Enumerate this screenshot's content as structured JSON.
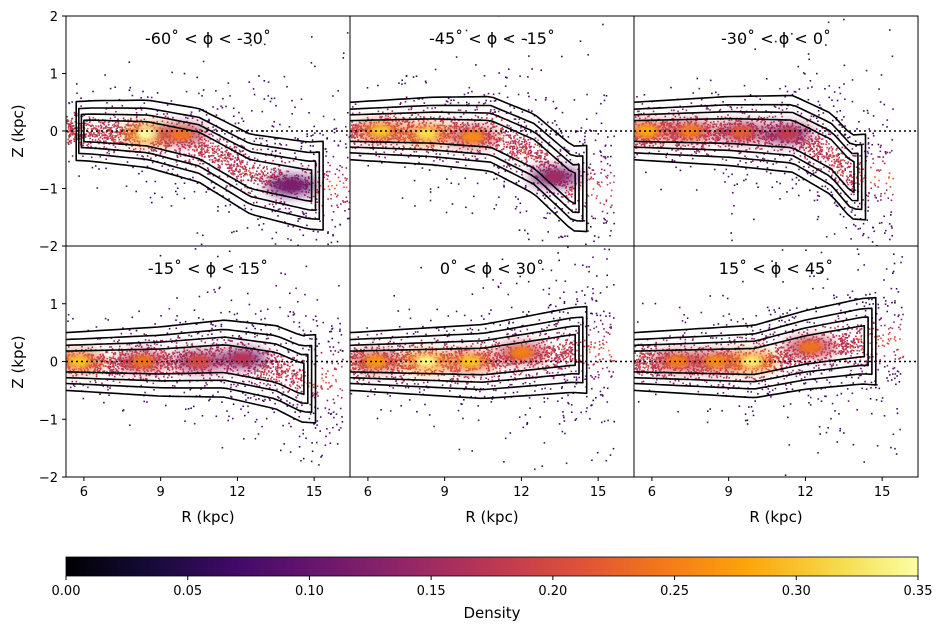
{
  "chart_data": {
    "type": "scatter",
    "description_grid": "2x3 panels sharing axes",
    "xlabel": "R (kpc)",
    "ylabel": "Z (kpc)",
    "xlim": [
      5.3,
      16.4
    ],
    "ylim": [
      -2,
      2
    ],
    "xticks": [
      6,
      9,
      12,
      15
    ],
    "yticks_top": [
      -2,
      -1,
      0,
      1,
      2
    ],
    "yticks_bottom": [
      -2,
      -1,
      0,
      1
    ],
    "reference_line": {
      "y": 0,
      "style": "dotted"
    },
    "contour_levels": 4,
    "colorbar": {
      "label": "Density",
      "range": [
        0.0,
        0.35
      ],
      "ticks": [
        "0.00",
        "0.05",
        "0.10",
        "0.15",
        "0.20",
        "0.25",
        "0.30",
        "0.35"
      ],
      "colormap": "inferno"
    },
    "panels": [
      {
        "title": "-60˚ < ϕ < -30˚",
        "ridge": [
          [
            6.3,
            0.0
          ],
          [
            8.5,
            -0.05
          ],
          [
            10.5,
            -0.25
          ],
          [
            12.5,
            -0.75
          ],
          [
            14.8,
            -0.95
          ]
        ],
        "peaks": [
          {
            "r": 8.5,
            "z": -0.05,
            "d": 0.35
          },
          {
            "r": 9.8,
            "z": -0.05,
            "d": 0.24
          },
          {
            "r": 14.1,
            "z": -0.95,
            "d": 0.12
          }
        ]
      },
      {
        "title": "-45˚ < ϕ < -15˚",
        "ridge": [
          [
            5.3,
            0.0
          ],
          [
            8.5,
            0.0
          ],
          [
            10.8,
            -0.05
          ],
          [
            12.5,
            -0.4
          ],
          [
            14.0,
            -1.0
          ]
        ],
        "peaks": [
          {
            "r": 6.5,
            "z": 0.0,
            "d": 0.3
          },
          {
            "r": 8.3,
            "z": -0.05,
            "d": 0.32
          },
          {
            "r": 10.1,
            "z": -0.1,
            "d": 0.26
          },
          {
            "r": 13.3,
            "z": -0.8,
            "d": 0.15
          }
        ]
      },
      {
        "title": "-30˚ < ϕ < 0˚",
        "ridge": [
          [
            5.3,
            0.0
          ],
          [
            9.0,
            0.0
          ],
          [
            11.5,
            -0.05
          ],
          [
            13.0,
            -0.4
          ],
          [
            13.8,
            -0.8
          ]
        ],
        "peaks": [
          {
            "r": 5.8,
            "z": 0.0,
            "d": 0.28
          },
          {
            "r": 7.5,
            "z": 0.0,
            "d": 0.25
          },
          {
            "r": 9.5,
            "z": -0.02,
            "d": 0.22
          },
          {
            "r": 11.3,
            "z": -0.05,
            "d": 0.18
          }
        ]
      },
      {
        "title": "-15˚ < ϕ < 15˚",
        "ridge": [
          [
            5.3,
            0.0
          ],
          [
            9.0,
            0.0
          ],
          [
            11.5,
            0.05
          ],
          [
            13.5,
            -0.1
          ],
          [
            14.5,
            -0.3
          ]
        ],
        "peaks": [
          {
            "r": 5.8,
            "z": 0.0,
            "d": 0.3
          },
          {
            "r": 8.3,
            "z": 0.0,
            "d": 0.24
          },
          {
            "r": 10.5,
            "z": 0.0,
            "d": 0.2
          },
          {
            "r": 12.2,
            "z": 0.05,
            "d": 0.17
          }
        ]
      },
      {
        "title": "0˚ < ϕ < 30˚",
        "ridge": [
          [
            5.3,
            0.0
          ],
          [
            8.3,
            0.0
          ],
          [
            10.5,
            0.0
          ],
          [
            12.3,
            0.1
          ],
          [
            14.0,
            0.2
          ]
        ],
        "peaks": [
          {
            "r": 6.3,
            "z": 0.0,
            "d": 0.27
          },
          {
            "r": 8.3,
            "z": 0.0,
            "d": 0.34
          },
          {
            "r": 10.0,
            "z": 0.0,
            "d": 0.3
          },
          {
            "r": 12.0,
            "z": 0.15,
            "d": 0.25
          }
        ]
      },
      {
        "title": "15˚ < ϕ < 45˚",
        "ridge": [
          [
            5.5,
            0.0
          ],
          [
            8.0,
            0.0
          ],
          [
            10.0,
            0.0
          ],
          [
            12.0,
            0.2
          ],
          [
            14.2,
            0.35
          ]
        ],
        "peaks": [
          {
            "r": 7.0,
            "z": 0.0,
            "d": 0.25
          },
          {
            "r": 8.5,
            "z": 0.0,
            "d": 0.26
          },
          {
            "r": 9.9,
            "z": 0.0,
            "d": 0.33
          },
          {
            "r": 12.2,
            "z": 0.25,
            "d": 0.24
          }
        ]
      }
    ]
  }
}
